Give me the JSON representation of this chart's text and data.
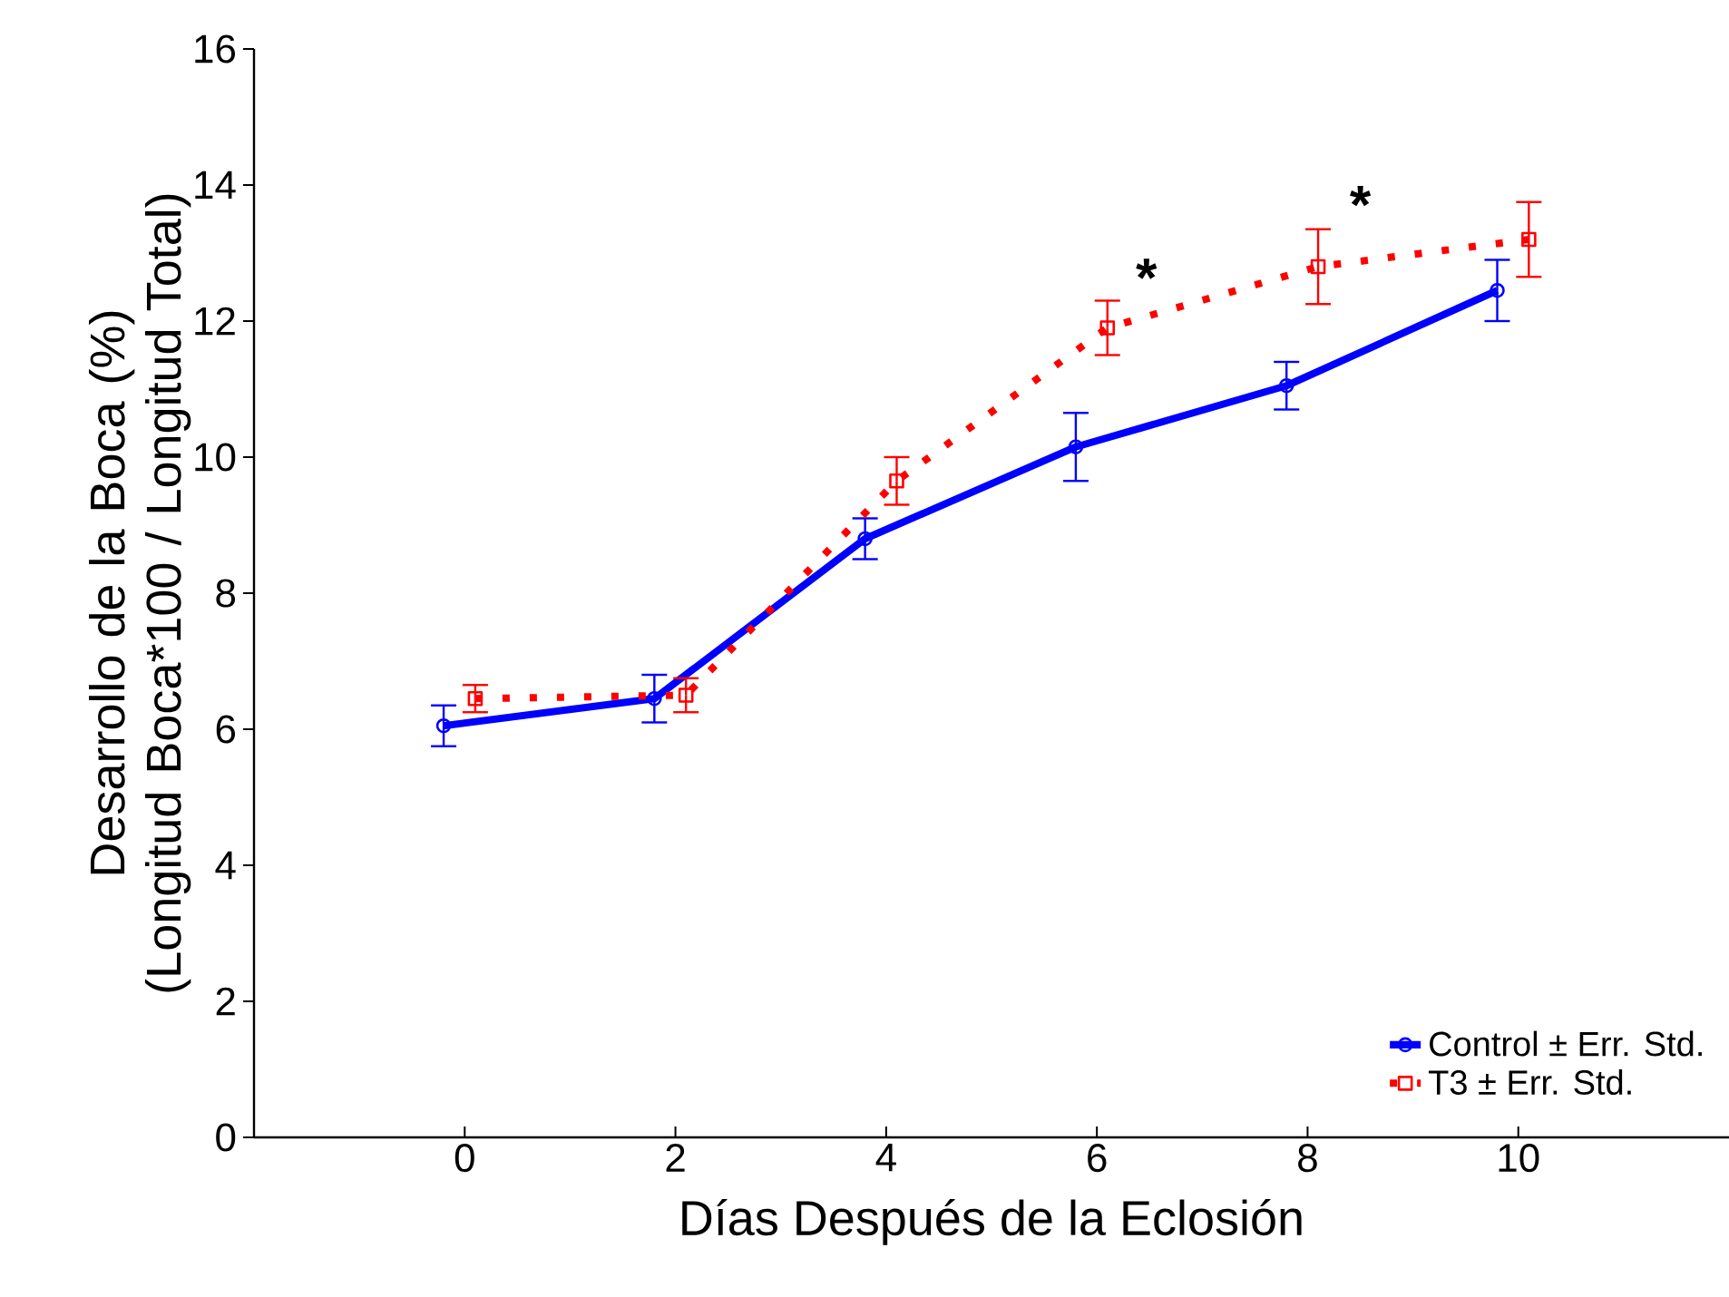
{
  "chart_data": {
    "type": "line",
    "xlabel": "Días Después de la Eclosión",
    "ylabel": "Desarrollo de la Boca (%)\n(Longitud Boca*100 / Longitud Total)",
    "xlim": [
      -2,
      12
    ],
    "ylim": [
      0,
      16
    ],
    "xticks": [
      0,
      2,
      4,
      6,
      8,
      10
    ],
    "yticks": [
      0,
      2,
      4,
      6,
      8,
      10,
      12,
      14,
      16
    ],
    "series": [
      {
        "name": "Control ± Err. Std.",
        "color": "#0000ff",
        "marker": "circle",
        "line_style": "solid",
        "x": [
          -0.2,
          1.8,
          3.8,
          5.8,
          7.8,
          9.8
        ],
        "values": [
          6.05,
          6.45,
          8.8,
          10.15,
          11.05,
          12.45
        ],
        "errors": [
          0.3,
          0.35,
          0.3,
          0.5,
          0.35,
          0.45
        ]
      },
      {
        "name": "T3 ± Err. Std.",
        "color": "#ff0000",
        "marker": "square",
        "line_style": "dotted",
        "x": [
          0.1,
          2.1,
          4.1,
          6.1,
          8.1,
          10.1
        ],
        "values": [
          6.45,
          6.5,
          9.65,
          11.9,
          12.8,
          13.2
        ],
        "errors": [
          0.2,
          0.25,
          0.35,
          0.4,
          0.55,
          0.55
        ]
      }
    ],
    "annotations": [
      "*",
      "*"
    ],
    "legend": "bottom right",
    "grid": false
  }
}
